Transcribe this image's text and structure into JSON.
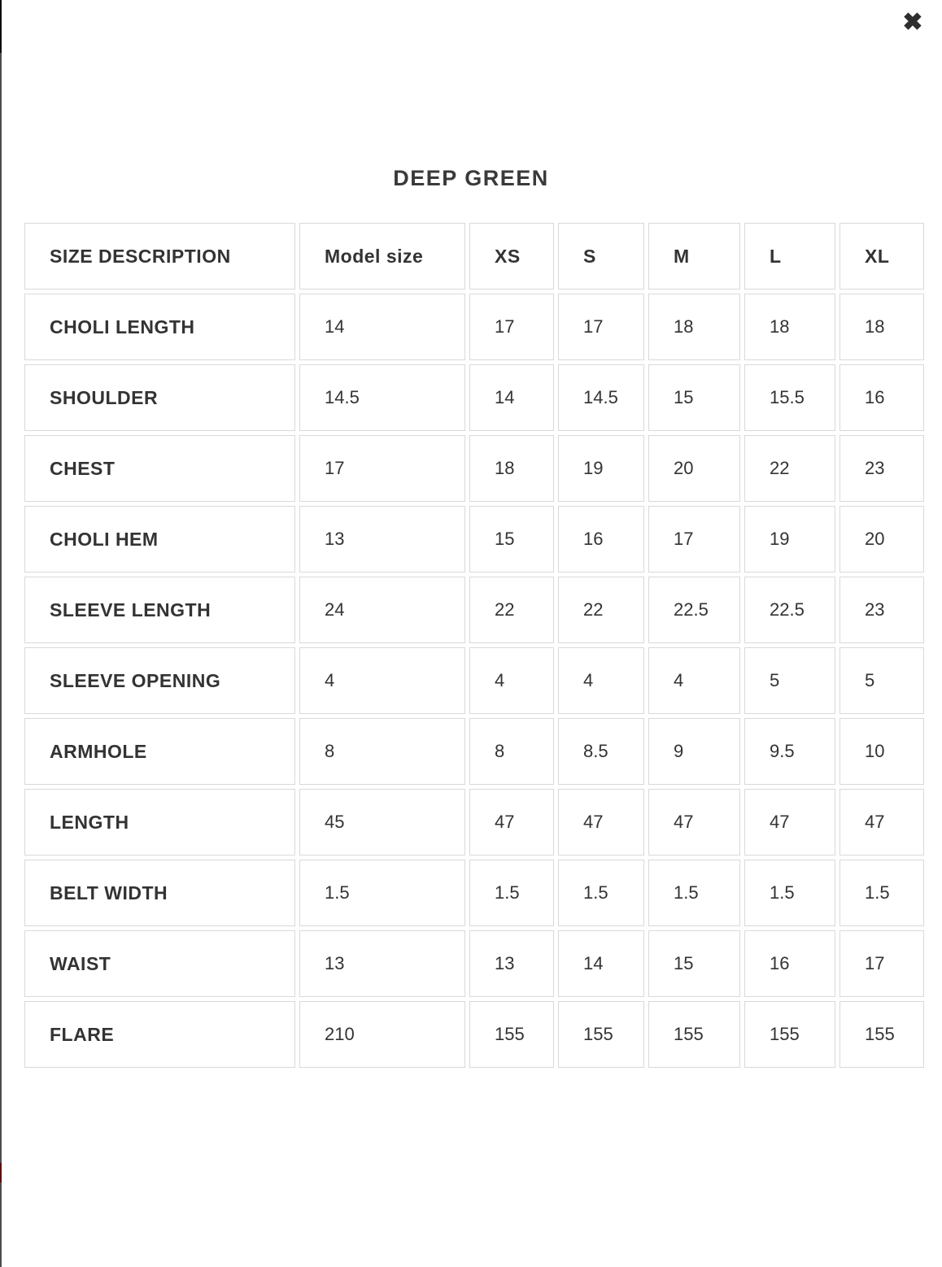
{
  "modal": {
    "title": "DEEP GREEN",
    "close_icon": "✖"
  },
  "table": {
    "columns": [
      "SIZE DESCRIPTION",
      "Model size",
      "XS",
      "S",
      "M",
      "L",
      "XL"
    ],
    "rows": [
      {
        "label": "CHOLI LENGTH",
        "values": [
          "14",
          "17",
          "17",
          "18",
          "18",
          "18"
        ]
      },
      {
        "label": "SHOULDER",
        "values": [
          "14.5",
          "14",
          "14.5",
          "15",
          "15.5",
          "16"
        ]
      },
      {
        "label": "CHEST",
        "values": [
          "17",
          "18",
          "19",
          "20",
          "22",
          "23"
        ]
      },
      {
        "label": "CHOLI HEM",
        "values": [
          "13",
          "15",
          "16",
          "17",
          "19",
          "20"
        ]
      },
      {
        "label": "SLEEVE LENGTH",
        "values": [
          "24",
          "22",
          "22",
          "22.5",
          "22.5",
          "23"
        ]
      },
      {
        "label": "SLEEVE OPENING",
        "values": [
          "4",
          "4",
          "4",
          "4",
          "5",
          "5"
        ]
      },
      {
        "label": "ARMHOLE",
        "values": [
          "8",
          "8",
          "8.5",
          "9",
          "9.5",
          "10"
        ]
      },
      {
        "label": "LENGTH",
        "values": [
          "45",
          "47",
          "47",
          "47",
          "47",
          "47"
        ]
      },
      {
        "label": "BELT WIDTH",
        "values": [
          "1.5",
          "1.5",
          "1.5",
          "1.5",
          "1.5",
          "1.5"
        ]
      },
      {
        "label": "WAIST",
        "values": [
          "13",
          "13",
          "14",
          "15",
          "16",
          "17"
        ]
      },
      {
        "label": "FLARE",
        "values": [
          "210",
          "155",
          "155",
          "155",
          "155",
          "155"
        ]
      }
    ]
  },
  "colors": {
    "cell_border": "#d9d9d9",
    "text": "#333333",
    "edge_strip_gray": "#4d4d4d",
    "edge_strip_black": "#0c0c0c",
    "edge_strip_red": "#5a0f0f"
  }
}
